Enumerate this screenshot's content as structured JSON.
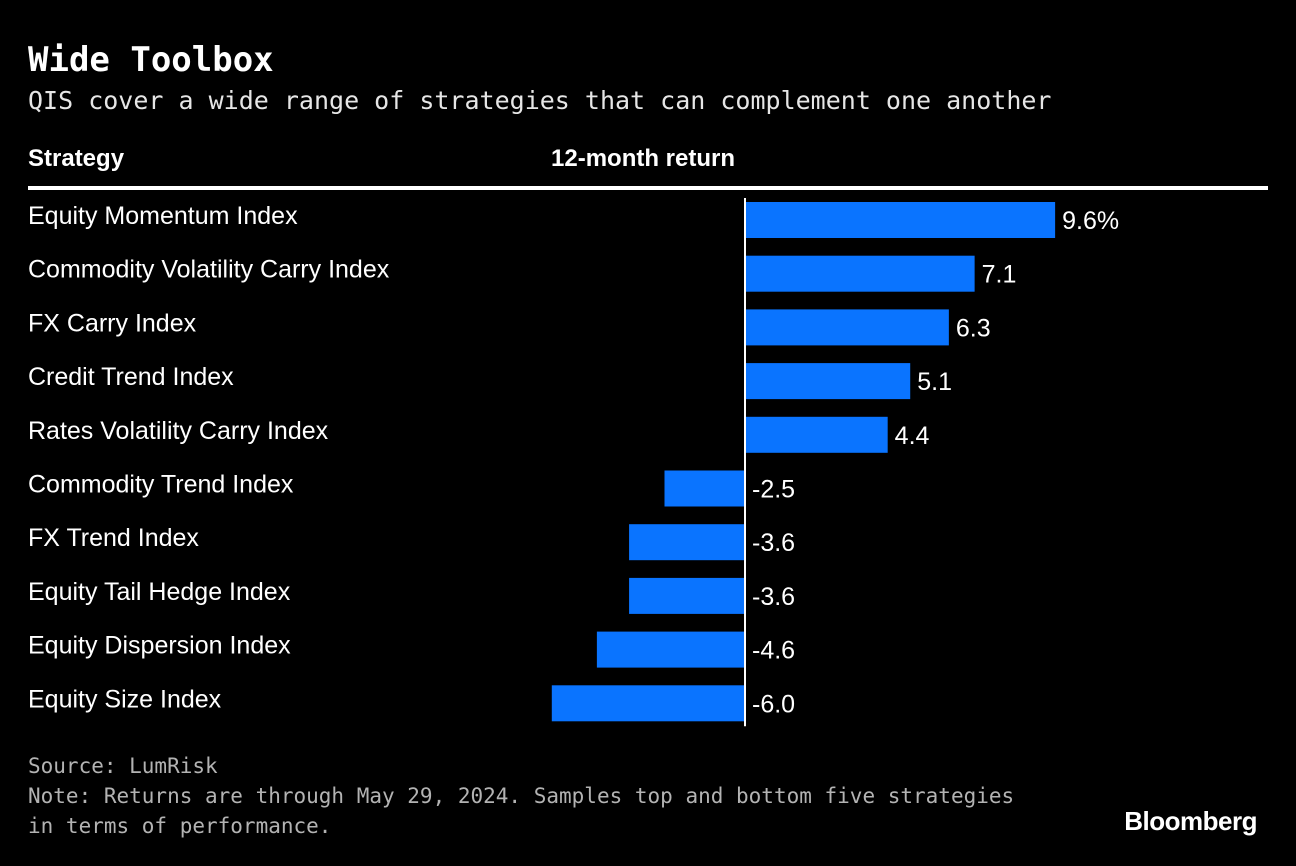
{
  "title": "Wide Toolbox",
  "subtitle": "QIS cover a wide range of strategies that can complement one another",
  "columns": {
    "strategy": "Strategy",
    "return": "12-month return"
  },
  "colors": {
    "background": "#000000",
    "bar": "#0a74ff",
    "text": "#ffffff",
    "footer_text": "#b3b3b3"
  },
  "chart_data": {
    "type": "bar",
    "orientation": "horizontal",
    "categories": [
      "Equity Momentum Index",
      "Commodity Volatility Carry Index",
      "FX Carry Index",
      "Credit Trend Index",
      "Rates Volatility Carry Index",
      "Commodity Trend Index",
      "FX Trend Index",
      "Equity Tail Hedge Index",
      "Equity Dispersion Index",
      "Equity Size Index"
    ],
    "values": [
      9.6,
      7.1,
      6.3,
      5.1,
      4.4,
      -2.5,
      -3.6,
      -3.6,
      -4.6,
      -6.0
    ],
    "value_labels": [
      "9.6%",
      "7.1",
      "6.3",
      "5.1",
      "4.4",
      "-2.5",
      "-3.6",
      "-3.6",
      "-4.6",
      "-6.0"
    ],
    "xlim": [
      -6.0,
      9.6
    ],
    "unit": "%",
    "grid": false,
    "legend": "none"
  },
  "footer": {
    "source": "Source: LumRisk",
    "note_line1": "Note: Returns are through May 29, 2024. Samples top and bottom five strategies",
    "note_line2": "in terms of performance."
  },
  "brand": "Bloomberg"
}
